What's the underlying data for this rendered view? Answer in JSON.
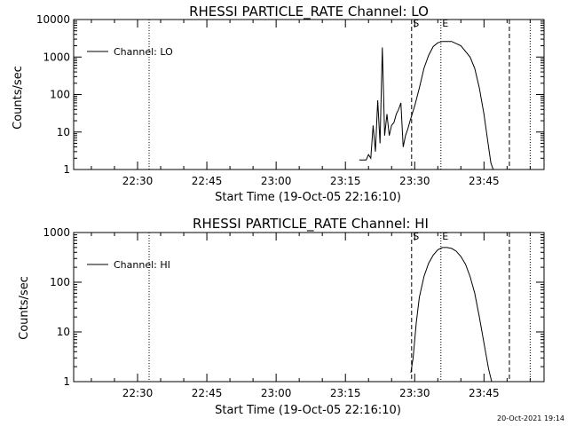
{
  "chart_data": [
    {
      "type": "line",
      "title": "RHESSI PARTICLE_RATE Channel: LO",
      "xlabel": "Start Time (19-Oct-05 22:16:10)",
      "ylabel": "Counts/sec",
      "yscale": "log",
      "ylim": [
        1,
        10000
      ],
      "xlim": [
        "22:16:10",
        "23:58:00"
      ],
      "x_ticks": [
        "22:30",
        "22:45",
        "23:00",
        "23:15",
        "23:30",
        "23:45"
      ],
      "y_ticks": [
        "1",
        "10",
        "100",
        "1000",
        "10000"
      ],
      "legend": {
        "position": "top-left",
        "entries": [
          "Channel: LO"
        ]
      },
      "series": [
        {
          "name": "Channel: LO",
          "x": [
            "23:18:00",
            "23:19:30",
            "23:20:00",
            "23:20:30",
            "23:21:00",
            "23:21:30",
            "23:22:00",
            "23:22:30",
            "23:23:00",
            "23:23:30",
            "23:24:00",
            "23:24:30",
            "23:25:00",
            "23:25:30",
            "23:26:00",
            "23:26:30",
            "23:27:00",
            "23:27:30",
            "23:28:00",
            "23:28:30",
            "23:29:00",
            "23:30:00",
            "23:31:00",
            "23:32:00",
            "23:33:00",
            "23:34:00",
            "23:35:00",
            "23:36:00",
            "23:38:00",
            "23:40:00",
            "23:42:00",
            "23:43:00",
            "23:44:00",
            "23:45:00",
            "23:46:00",
            "23:46:30",
            "23:47:00"
          ],
          "values": [
            1.8,
            1.8,
            2.5,
            2.0,
            15,
            3,
            70,
            5,
            1800,
            8,
            30,
            8,
            15,
            18,
            30,
            40,
            60,
            4,
            8,
            12,
            20,
            50,
            150,
            500,
            1100,
            1900,
            2400,
            2600,
            2600,
            2000,
            1000,
            500,
            150,
            30,
            4,
            1.5,
            1
          ]
        }
      ],
      "vertical_lines": [
        {
          "x": "22:32:30",
          "style": "dotted",
          "label": ""
        },
        {
          "x": "23:29:20",
          "style": "dashed",
          "label": "S"
        },
        {
          "x": "23:35:40",
          "style": "dotted",
          "label": "E"
        },
        {
          "x": "23:50:30",
          "style": "dashed",
          "label": ""
        },
        {
          "x": "23:55:00",
          "style": "dotted",
          "label": ""
        }
      ]
    },
    {
      "type": "line",
      "title": "RHESSI PARTICLE_RATE Channel: HI",
      "xlabel": "Start Time (19-Oct-05 22:16:10)",
      "ylabel": "Counts/sec",
      "yscale": "log",
      "ylim": [
        1,
        1000
      ],
      "xlim": [
        "22:16:10",
        "23:58:00"
      ],
      "x_ticks": [
        "22:30",
        "22:45",
        "23:00",
        "23:15",
        "23:30",
        "23:45"
      ],
      "y_ticks": [
        "1",
        "10",
        "100",
        "1000"
      ],
      "legend": {
        "position": "top-left",
        "entries": [
          "Channel: HI"
        ]
      },
      "series": [
        {
          "name": "Channel: HI",
          "x": [
            "23:29:10",
            "23:29:40",
            "23:30:20",
            "23:31:00",
            "23:32:00",
            "23:33:00",
            "23:34:00",
            "23:35:00",
            "23:36:00",
            "23:37:00",
            "23:38:00",
            "23:39:00",
            "23:40:00",
            "23:41:00",
            "23:42:00",
            "23:43:00",
            "23:44:00",
            "23:45:00",
            "23:46:00",
            "23:46:40"
          ],
          "values": [
            1.5,
            3,
            15,
            50,
            130,
            240,
            350,
            450,
            500,
            500,
            480,
            420,
            330,
            230,
            130,
            60,
            20,
            6,
            1.8,
            1
          ]
        }
      ],
      "vertical_lines": [
        {
          "x": "22:32:30",
          "style": "dotted",
          "label": ""
        },
        {
          "x": "23:29:20",
          "style": "dashed",
          "label": "S"
        },
        {
          "x": "23:35:40",
          "style": "dotted",
          "label": "E"
        },
        {
          "x": "23:50:30",
          "style": "dashed",
          "label": ""
        },
        {
          "x": "23:55:00",
          "style": "dotted",
          "label": ""
        }
      ]
    }
  ],
  "footer": {
    "timestamp": "20-Oct-2021 19:14"
  }
}
